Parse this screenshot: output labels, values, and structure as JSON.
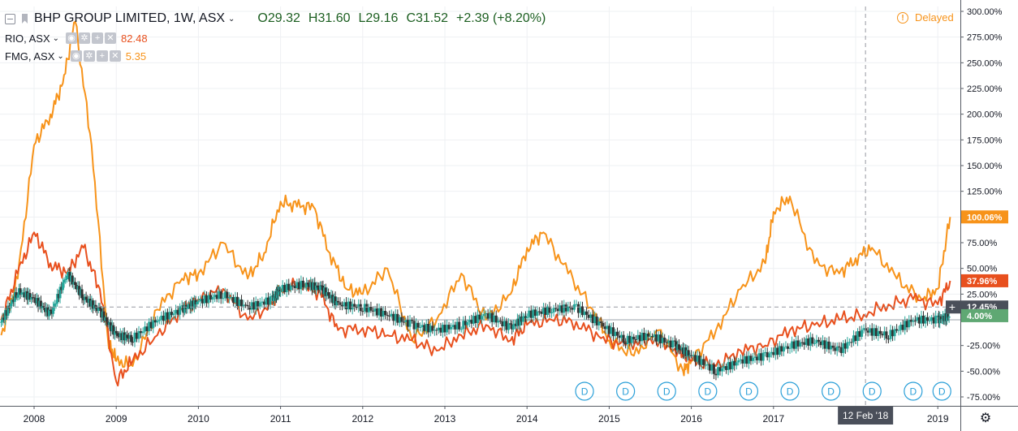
{
  "header": {
    "symbol": "BHP GROUP LIMITED, 1W, ASX",
    "open": "O29.32",
    "high": "H31.60",
    "low": "L29.16",
    "close": "C31.52",
    "change": "+2.39 (+8.20%)"
  },
  "compare": [
    {
      "symbol": "RIO, ASX",
      "value": "82.48",
      "color": "#e8501e"
    },
    {
      "symbol": "FMG, ASX",
      "value": "5.35",
      "color": "#f7931a"
    }
  ],
  "status": {
    "delayed_label": "Delayed",
    "delayed_icon": "!"
  },
  "crosshair": {
    "date_label": "12 Feb '18"
  },
  "dividend_marker_label": "D",
  "colors": {
    "bhp_up": "#26a69a",
    "bhp_down": "#333333",
    "rio": "#e8501e",
    "fmg": "#f7931a",
    "last_label_bg": "#4a4f5a",
    "bhp_label_bg": "#5fa873"
  },
  "icons": [
    "collapse-icon",
    "flag-icon",
    "eye-icon",
    "settings-icon",
    "plus-icon",
    "close-icon",
    "warning-icon",
    "gear-icon"
  ],
  "chart_data": {
    "type": "line",
    "ylabel": "",
    "y_unit": "%",
    "ylim": [
      -80,
      305
    ],
    "y_ticks": [
      "300.00%",
      "275.00%",
      "250.00%",
      "225.00%",
      "200.00%",
      "175.00%",
      "150.00%",
      "125.00%",
      "100.00%",
      "75.00%",
      "50.00%",
      "25.00%",
      "-25.00%",
      "-50.00%",
      "-75.00%"
    ],
    "y_tick_values": [
      300,
      275,
      250,
      225,
      200,
      175,
      150,
      125,
      100,
      75,
      50,
      25,
      -25,
      -50,
      -75
    ],
    "x_ticks": [
      "2008",
      "2009",
      "2010",
      "2011",
      "2012",
      "2013",
      "2014",
      "2015",
      "2016",
      "2017",
      "2018",
      "2019"
    ],
    "x_tick_values": [
      2008.0,
      2009.0,
      2010.0,
      2011.0,
      2012.0,
      2013.0,
      2014.0,
      2015.0,
      2016.0,
      2017.0,
      2018.0,
      2019.0
    ],
    "xlim": [
      2007.6,
      2019.2
    ],
    "grid": true,
    "crosshair_x": 2018.12,
    "crosshair_y": 12.45,
    "dividend_markers_x": [
      2014.7,
      2015.2,
      2015.7,
      2016.2,
      2016.7,
      2017.2,
      2017.7,
      2018.2,
      2018.7,
      2019.05
    ],
    "last_value_labels": [
      {
        "text": "100.06%",
        "value": 100.06,
        "series": "fmg"
      },
      {
        "text": "37.96%",
        "value": 37.96,
        "series": "rio"
      },
      {
        "text": "12.45%",
        "value": 12.45,
        "series": "crosshair"
      },
      {
        "text": "4.00%",
        "value": 4.0,
        "series": "bhp"
      }
    ],
    "series": [
      {
        "id": "bhp",
        "style": "candles",
        "x": [
          2007.6,
          2007.8,
          2008.0,
          2008.2,
          2008.4,
          2008.6,
          2008.8,
          2009.0,
          2009.2,
          2009.5,
          2009.8,
          2010.0,
          2010.3,
          2010.6,
          2010.9,
          2011.0,
          2011.3,
          2011.5,
          2011.7,
          2012.0,
          2012.3,
          2012.6,
          2012.9,
          2013.2,
          2013.5,
          2013.8,
          2014.0,
          2014.3,
          2014.6,
          2014.9,
          2015.2,
          2015.5,
          2015.8,
          2016.0,
          2016.3,
          2016.6,
          2016.9,
          2017.2,
          2017.5,
          2017.8,
          2018.1,
          2018.4,
          2018.7,
          2019.0,
          2019.15
        ],
        "y": [
          -2,
          28,
          20,
          5,
          45,
          22,
          8,
          -15,
          -18,
          0,
          10,
          18,
          25,
          12,
          20,
          30,
          35,
          30,
          15,
          12,
          5,
          -5,
          -10,
          -5,
          5,
          -8,
          5,
          10,
          12,
          -5,
          -20,
          -15,
          -25,
          -35,
          -50,
          -40,
          -35,
          -25,
          -20,
          -30,
          -10,
          -15,
          0,
          0,
          4
        ]
      },
      {
        "id": "rio",
        "style": "line",
        "x": [
          2007.6,
          2007.8,
          2008.0,
          2008.2,
          2008.4,
          2008.6,
          2008.8,
          2009.0,
          2009.2,
          2009.5,
          2009.8,
          2010.0,
          2010.3,
          2010.6,
          2010.9,
          2011.0,
          2011.3,
          2011.5,
          2011.7,
          2012.0,
          2012.3,
          2012.6,
          2012.9,
          2013.2,
          2013.5,
          2013.8,
          2014.0,
          2014.3,
          2014.6,
          2014.9,
          2015.2,
          2015.5,
          2015.8,
          2016.0,
          2016.3,
          2016.6,
          2016.9,
          2017.2,
          2017.5,
          2017.8,
          2018.1,
          2018.4,
          2018.7,
          2019.0,
          2019.15
        ],
        "y": [
          0,
          45,
          85,
          55,
          45,
          70,
          30,
          -60,
          -40,
          -15,
          10,
          20,
          30,
          0,
          15,
          30,
          35,
          22,
          -10,
          -8,
          -15,
          -20,
          -30,
          -15,
          -5,
          -20,
          -5,
          0,
          -2,
          -18,
          -25,
          -18,
          -28,
          -40,
          -45,
          -30,
          -25,
          -10,
          -5,
          0,
          5,
          15,
          20,
          15,
          37.96
        ]
      },
      {
        "id": "fmg",
        "style": "line",
        "x": [
          2007.6,
          2007.8,
          2008.0,
          2008.2,
          2008.35,
          2008.5,
          2008.7,
          2008.9,
          2009.0,
          2009.2,
          2009.5,
          2009.8,
          2010.0,
          2010.3,
          2010.6,
          2010.8,
          2011.0,
          2011.2,
          2011.4,
          2011.6,
          2011.8,
          2012.0,
          2012.3,
          2012.6,
          2012.9,
          2013.2,
          2013.5,
          2013.8,
          2014.0,
          2014.2,
          2014.5,
          2014.8,
          2015.0,
          2015.3,
          2015.6,
          2015.9,
          2016.0,
          2016.3,
          2016.6,
          2016.9,
          2017.0,
          2017.2,
          2017.5,
          2017.8,
          2018.0,
          2018.2,
          2018.5,
          2018.8,
          2019.0,
          2019.15
        ],
        "y": [
          -15,
          40,
          170,
          200,
          230,
          290,
          170,
          -20,
          -40,
          -45,
          10,
          40,
          45,
          75,
          40,
          65,
          115,
          110,
          110,
          65,
          30,
          25,
          50,
          -20,
          0,
          45,
          0,
          25,
          70,
          85,
          45,
          10,
          -20,
          -35,
          -10,
          -50,
          -40,
          -10,
          30,
          55,
          105,
          120,
          55,
          45,
          60,
          70,
          40,
          20,
          30,
          100.06
        ]
      }
    ]
  }
}
